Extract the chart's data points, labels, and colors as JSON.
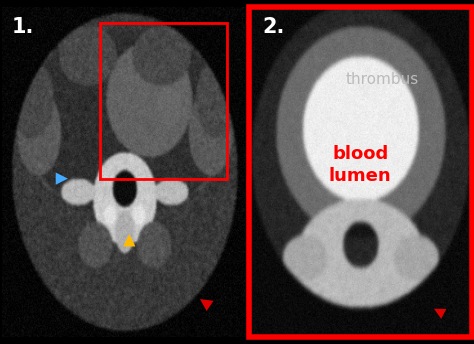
{
  "bg_color": "#000000",
  "panel1_label": "1.",
  "panel2_label": "2.",
  "thrombus_label": "thrombus",
  "blood_lumen_label": "blood\nlumen",
  "label_color_1": "#ffffff",
  "label_color_thrombus": "#bbbbbb",
  "label_color_blood": "#ff0000",
  "red_box_color": "#ff0000",
  "arrow_red_color": "#dd0000",
  "arrow_blue_color": "#44aaff",
  "arrow_orange_color": "#ffbb00",
  "figsize": [
    4.74,
    3.44
  ],
  "dpi": 100
}
